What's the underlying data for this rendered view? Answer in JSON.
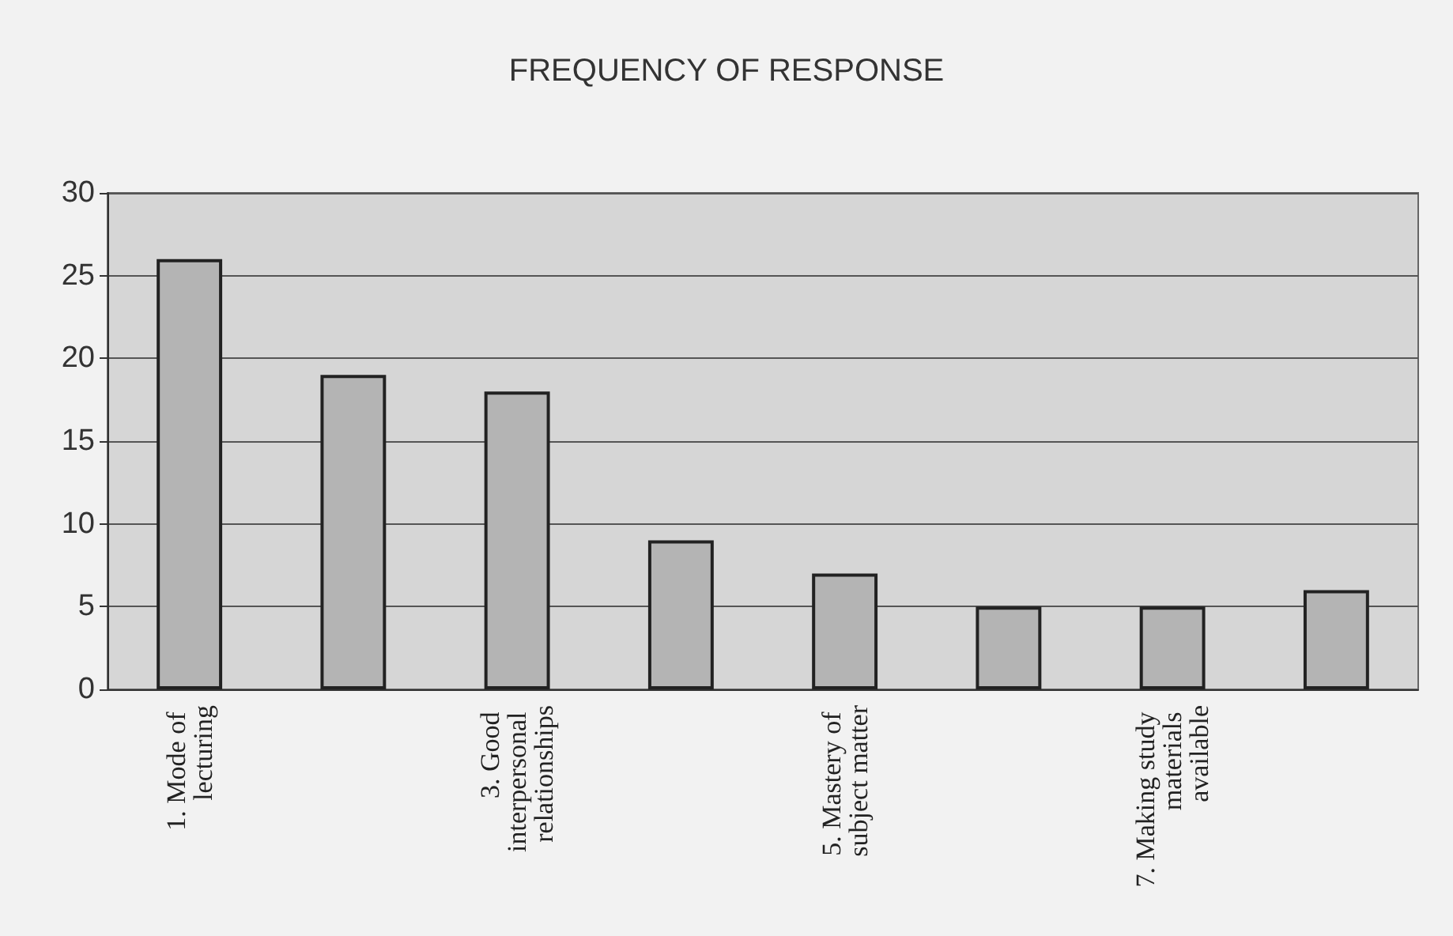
{
  "chart_data": {
    "type": "bar",
    "title": "FREQUENCY OF RESPONSE",
    "categories": [
      "1. Mode of lecturing",
      null,
      "3. Good interpersonal relationships",
      null,
      "5. Mastery of subject matter",
      null,
      "7. Making study materials available",
      null
    ],
    "values": [
      26,
      19,
      18,
      9,
      7,
      5,
      5,
      6
    ],
    "color": "#b4b4b4",
    "ylim": [
      0,
      30
    ],
    "yticks": [
      0,
      5,
      10,
      15,
      20,
      25,
      30
    ],
    "grid": "y"
  }
}
